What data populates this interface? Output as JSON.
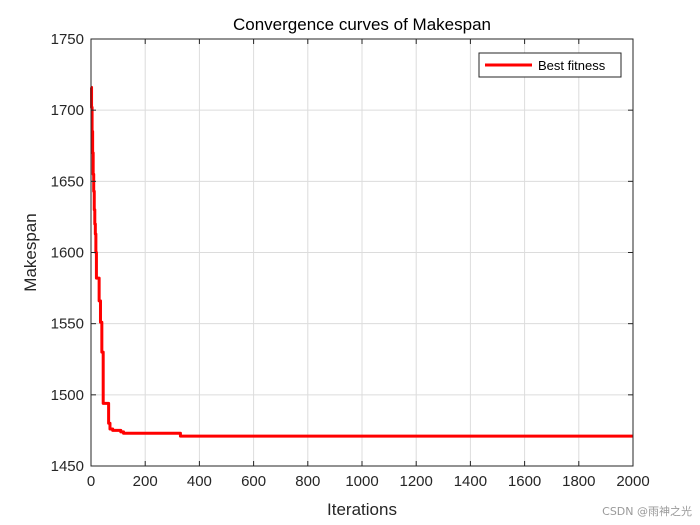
{
  "chart_data": {
    "type": "line",
    "title": "Convergence curves of Makespan",
    "xlabel": "Iterations",
    "ylabel": "Makespan",
    "xlim": [
      0,
      2000
    ],
    "ylim": [
      1450,
      1750
    ],
    "xticks": [
      0,
      200,
      400,
      600,
      800,
      1000,
      1200,
      1400,
      1600,
      1800,
      2000
    ],
    "yticks": [
      1450,
      1500,
      1550,
      1600,
      1650,
      1700,
      1750
    ],
    "grid": true,
    "legend_position": "top-right",
    "series": [
      {
        "name": "Best fitness",
        "color": "#ff0000",
        "step": true,
        "x": [
          0,
          2,
          4,
          6,
          8,
          10,
          12,
          14,
          16,
          18,
          20,
          25,
          30,
          35,
          40,
          45,
          50,
          55,
          60,
          65,
          70,
          80,
          90,
          100,
          110,
          120,
          150,
          200,
          250,
          300,
          320,
          330,
          340,
          400,
          600,
          800,
          1000,
          1200,
          1400,
          1600,
          1800,
          2000
        ],
        "y": [
          1716,
          1702,
          1685,
          1670,
          1655,
          1643,
          1630,
          1620,
          1613,
          1600,
          1582,
          1582,
          1566,
          1551,
          1530,
          1494,
          1494,
          1494,
          1494,
          1480,
          1476,
          1475,
          1475,
          1475,
          1474,
          1473,
          1473,
          1473,
          1473,
          1473,
          1473,
          1471,
          1471,
          1471,
          1471,
          1471,
          1471,
          1471,
          1471,
          1471,
          1471,
          1471
        ]
      }
    ]
  },
  "watermark": "CSDN @雨神之光"
}
